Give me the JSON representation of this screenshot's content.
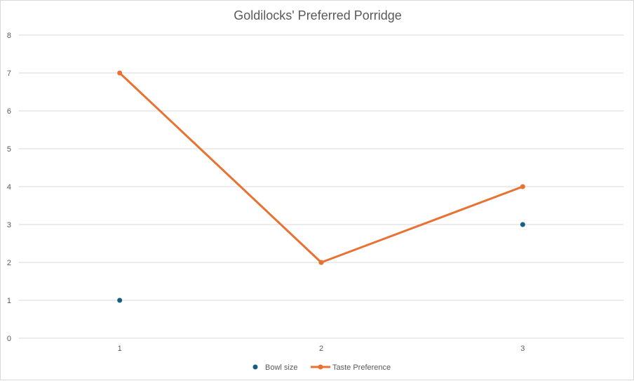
{
  "chart_data": {
    "type": "line",
    "title": "Goldilocks' Preferred Porridge",
    "xlabel": "",
    "ylabel": "",
    "categories": [
      "1",
      "2",
      "3"
    ],
    "ylim": [
      0,
      8
    ],
    "y_ticks": [
      "0",
      "1",
      "2",
      "3",
      "4",
      "5",
      "6",
      "7",
      "8"
    ],
    "grid": true,
    "legend_position": "bottom",
    "series": [
      {
        "name": "Bowl size",
        "style": "markers",
        "color": "#156082",
        "values": [
          1,
          2,
          3
        ]
      },
      {
        "name": "Taste Preference",
        "style": "line-markers",
        "color": "#E97132",
        "values": [
          7,
          2,
          4
        ]
      }
    ]
  }
}
